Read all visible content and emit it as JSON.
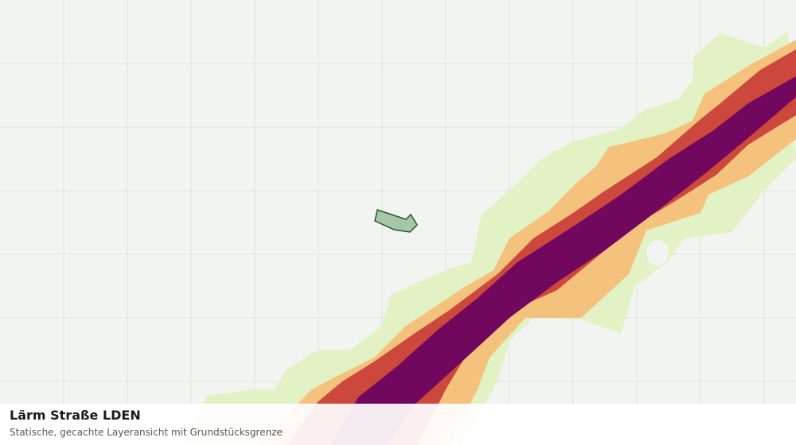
{
  "title": "Lärm Straße LDEN",
  "subtitle": "Statische, gecachte Layeransicht mit Grundstücksgrenze"
}
